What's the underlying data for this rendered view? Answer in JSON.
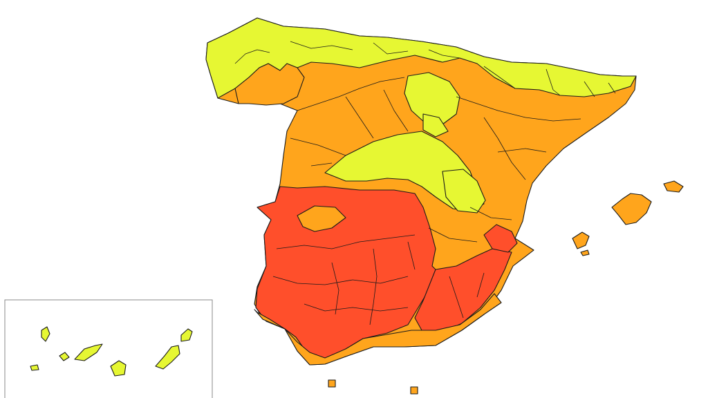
{
  "map": {
    "colors": {
      "level_low": "#e6f733",
      "level_medium": "#ffa51c",
      "level_high": "#ff4f2b",
      "outline": "#1a1a1a",
      "background": "#ffffff",
      "inset_frame": "#8a8a8a"
    },
    "zones": [
      {
        "id": "north-coast",
        "level": "level_low"
      },
      {
        "id": "upper-central",
        "level": "level_low"
      },
      {
        "id": "northeast",
        "level": "level_medium"
      },
      {
        "id": "central-plateau",
        "level": "level_medium"
      },
      {
        "id": "east",
        "level": "level_medium"
      },
      {
        "id": "southwest",
        "level": "level_high"
      },
      {
        "id": "southeast",
        "level": "level_high"
      },
      {
        "id": "south-coast",
        "level": "level_medium"
      },
      {
        "id": "balearic-islands",
        "level": "level_medium"
      },
      {
        "id": "canary-islands",
        "level": "level_low"
      },
      {
        "id": "ceuta-melilla",
        "level": "level_medium"
      }
    ],
    "inset": {
      "label": "",
      "contents": "canary-islands"
    }
  }
}
